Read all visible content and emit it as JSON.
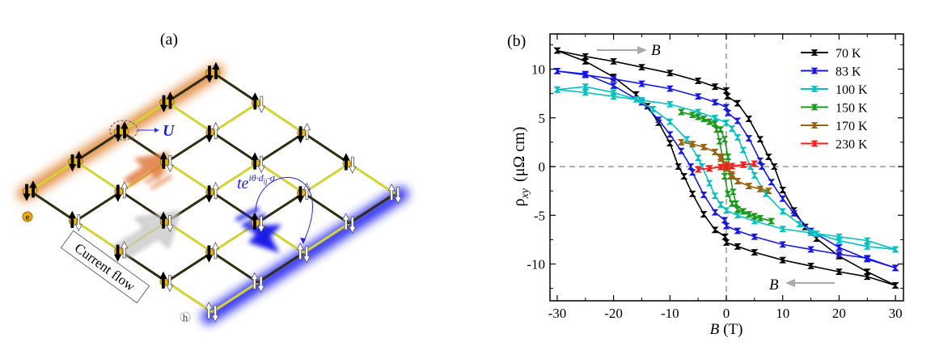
{
  "figure_a": {
    "panel_label": "(a)",
    "interaction_label": "U",
    "hopping_label": "te",
    "hopping_exponent": "iθ·d",
    "hopping_subscript": "ij",
    "hopping_sigma": "·σ",
    "current_label": "Current flow",
    "electron_label": "e",
    "hole_label": "h",
    "colors": {
      "electron_edge": "#e08a30",
      "hole_edge": "#2020e0",
      "bond_light": "#d4d430",
      "bond_dark": "#2e2e10",
      "spin_site": "#f0b800"
    }
  },
  "chart_data": {
    "type": "line",
    "panel_label": "(b)",
    "xlabel": "B",
    "xlabel_unit": "(T)",
    "ylabel": "ρ",
    "ylabel_sub": "xy",
    "ylabel_unit": "(μΩ cm)",
    "xlim": [
      -31,
      31
    ],
    "ylim": [
      -13.5,
      14
    ],
    "xticks": [
      "-30",
      "-20",
      "-10",
      "0",
      "10",
      "20",
      "30"
    ],
    "yticks": [
      "-10",
      "-5",
      "0",
      "5",
      "10"
    ],
    "zero_lines": "dashed",
    "legend_position": "top-right",
    "sweep_up_label": "B",
    "sweep_down_label": "B",
    "series": [
      {
        "name": "70 K",
        "color": "#000000",
        "sweep_up": [
          [
            -30,
            11.9
          ],
          [
            -25,
            11.3
          ],
          [
            -20,
            10.8
          ],
          [
            -15,
            10.2
          ],
          [
            -10,
            9.6
          ],
          [
            -5,
            8.8
          ],
          [
            -2,
            8.2
          ],
          [
            0,
            7.8
          ],
          [
            0.2,
            7.2
          ],
          [
            2,
            6.5
          ],
          [
            4,
            4.9
          ],
          [
            6,
            2.8
          ],
          [
            7.5,
            1.0
          ],
          [
            8.5,
            0
          ],
          [
            10,
            -2.4
          ],
          [
            12,
            -4.5
          ],
          [
            14,
            -6.2
          ],
          [
            16,
            -7.4
          ],
          [
            20,
            -9.2
          ],
          [
            25,
            -10.8
          ],
          [
            30,
            -12.2
          ]
        ],
        "sweep_down": [
          [
            30,
            -12.2
          ],
          [
            25,
            -11.3
          ],
          [
            20,
            -10.8
          ],
          [
            15,
            -10.2
          ],
          [
            10,
            -9.6
          ],
          [
            5,
            -8.8
          ],
          [
            2,
            -8.2
          ],
          [
            0,
            -7.8
          ],
          [
            -0.2,
            -7.2
          ],
          [
            -2,
            -6.5
          ],
          [
            -4,
            -4.9
          ],
          [
            -6,
            -2.8
          ],
          [
            -7.5,
            -1.0
          ],
          [
            -8.5,
            0
          ],
          [
            -10,
            2.4
          ],
          [
            -12,
            4.5
          ],
          [
            -14,
            6.2
          ],
          [
            -16,
            7.4
          ],
          [
            -20,
            9.2
          ],
          [
            -25,
            10.8
          ],
          [
            -30,
            11.9
          ]
        ]
      },
      {
        "name": "83 K",
        "color": "#1515f0",
        "sweep_up": [
          [
            -30,
            9.8
          ],
          [
            -25,
            9.4
          ],
          [
            -20,
            9.0
          ],
          [
            -15,
            8.5
          ],
          [
            -10,
            8.0
          ],
          [
            -5,
            7.2
          ],
          [
            -2,
            6.6
          ],
          [
            0,
            6.1
          ],
          [
            0.3,
            5.5
          ],
          [
            2,
            4.7
          ],
          [
            4,
            2.9
          ],
          [
            6,
            0.6
          ],
          [
            6.3,
            0
          ],
          [
            8,
            -1.6
          ],
          [
            10,
            -3.3
          ],
          [
            12,
            -4.8
          ],
          [
            15,
            -6.6
          ],
          [
            20,
            -8.3
          ],
          [
            25,
            -9.5
          ],
          [
            30,
            -10.4
          ]
        ],
        "sweep_down": [
          [
            30,
            -10.4
          ],
          [
            25,
            -9.4
          ],
          [
            20,
            -9.0
          ],
          [
            15,
            -8.5
          ],
          [
            10,
            -8.0
          ],
          [
            5,
            -7.2
          ],
          [
            2,
            -6.6
          ],
          [
            0,
            -6.1
          ],
          [
            -0.3,
            -5.5
          ],
          [
            -2,
            -4.7
          ],
          [
            -4,
            -2.9
          ],
          [
            -6,
            -0.6
          ],
          [
            -6.3,
            0
          ],
          [
            -8,
            1.6
          ],
          [
            -10,
            3.3
          ],
          [
            -12,
            4.8
          ],
          [
            -15,
            6.6
          ],
          [
            -20,
            8.3
          ],
          [
            -25,
            9.5
          ],
          [
            -30,
            9.8
          ]
        ]
      },
      {
        "name": "100 K",
        "color": "#00c4c4",
        "sweep_up": [
          [
            -30,
            7.9
          ],
          [
            -25,
            7.6
          ],
          [
            -20,
            7.2
          ],
          [
            -15,
            6.8
          ],
          [
            -10,
            6.4
          ],
          [
            -5,
            5.6
          ],
          [
            -2,
            5.0
          ],
          [
            0,
            4.5
          ],
          [
            1,
            3.9
          ],
          [
            2,
            3.0
          ],
          [
            3,
            1.7
          ],
          [
            4.3,
            0
          ],
          [
            5,
            -0.9
          ],
          [
            7,
            -2.8
          ],
          [
            10,
            -4.6
          ],
          [
            13,
            -5.9
          ],
          [
            16,
            -6.9
          ],
          [
            20,
            -7.6
          ],
          [
            25,
            -8.2
          ],
          [
            30,
            -8.5
          ]
        ],
        "sweep_down": [
          [
            30,
            -8.5
          ],
          [
            25,
            -7.6
          ],
          [
            20,
            -7.2
          ],
          [
            15,
            -6.8
          ],
          [
            10,
            -6.4
          ],
          [
            5,
            -5.6
          ],
          [
            2,
            -5.0
          ],
          [
            0,
            -4.5
          ],
          [
            -1,
            -3.9
          ],
          [
            -2,
            -3.0
          ],
          [
            -3,
            -1.7
          ],
          [
            -4.3,
            0
          ],
          [
            -5,
            0.9
          ],
          [
            -7,
            2.8
          ],
          [
            -10,
            4.6
          ],
          [
            -13,
            5.9
          ],
          [
            -16,
            6.9
          ],
          [
            -20,
            7.6
          ],
          [
            -25,
            8.2
          ],
          [
            -30,
            7.9
          ]
        ]
      },
      {
        "name": "150 K",
        "color": "#1a9a1a",
        "sweep_up": [
          [
            -8,
            5.6
          ],
          [
            -6,
            5.3
          ],
          [
            -4,
            4.9
          ],
          [
            -2,
            4.4
          ],
          [
            -1,
            3.8
          ],
          [
            -0.3,
            2.8
          ],
          [
            0.3,
            1.0
          ],
          [
            0.7,
            -1.0
          ],
          [
            1.2,
            -2.6
          ],
          [
            1.7,
            -3.8
          ],
          [
            3,
            -4.6
          ],
          [
            5,
            -5.1
          ],
          [
            8,
            -5.6
          ]
        ],
        "sweep_down": [
          [
            8,
            -5.6
          ],
          [
            6,
            -5.3
          ],
          [
            4,
            -4.9
          ],
          [
            2,
            -4.4
          ],
          [
            1,
            -3.8
          ],
          [
            0.3,
            -2.8
          ],
          [
            -0.3,
            -1.0
          ],
          [
            -0.7,
            1.0
          ],
          [
            -1.2,
            2.6
          ],
          [
            -1.7,
            3.8
          ],
          [
            -3,
            4.6
          ],
          [
            -5,
            5.1
          ],
          [
            -8,
            5.6
          ]
        ]
      },
      {
        "name": "170 K",
        "color": "#9a6410",
        "sweep_up": [
          [
            -8,
            2.5
          ],
          [
            -6,
            2.3
          ],
          [
            -4,
            2.0
          ],
          [
            -2,
            1.5
          ],
          [
            -1,
            1.0
          ],
          [
            0,
            0.2
          ],
          [
            1,
            -0.8
          ],
          [
            2,
            -1.5
          ],
          [
            4,
            -2.0
          ],
          [
            6,
            -2.3
          ],
          [
            7.5,
            -2.5
          ]
        ],
        "sweep_down": [
          [
            7.5,
            -2.5
          ],
          [
            6,
            -2.3
          ],
          [
            4,
            -2.0
          ],
          [
            2,
            -1.5
          ],
          [
            1,
            -1.0
          ],
          [
            0,
            -0.2
          ],
          [
            -1,
            0.8
          ],
          [
            -2,
            1.5
          ],
          [
            -4,
            2.0
          ],
          [
            -6,
            2.3
          ],
          [
            -8,
            2.5
          ]
        ]
      },
      {
        "name": "230 K",
        "color": "#ff1a1a",
        "sweep_up": [
          [
            -5,
            -0.3
          ],
          [
            -3,
            -0.2
          ],
          [
            -1,
            -0.05
          ],
          [
            0,
            0
          ],
          [
            1,
            0.05
          ],
          [
            3,
            0.2
          ],
          [
            5,
            0.3
          ]
        ],
        "sweep_down": [
          [
            5,
            0.3
          ],
          [
            3,
            0.18
          ],
          [
            1,
            0.05
          ],
          [
            0,
            0
          ],
          [
            -1,
            -0.05
          ],
          [
            -3,
            -0.18
          ],
          [
            -5,
            -0.3
          ]
        ]
      }
    ]
  }
}
